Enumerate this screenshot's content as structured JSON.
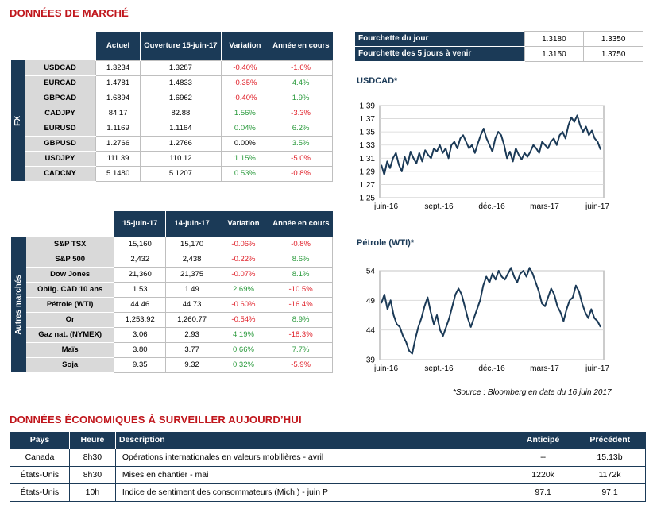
{
  "market": {
    "title": "DONNÉES DE MARCHÉ",
    "fx": {
      "sidebar": "FX",
      "headers": [
        "Actuel",
        "Ouverture 15-juin-17",
        "Variation",
        "Année en cours"
      ],
      "rows": [
        {
          "label": "USDCAD",
          "a": "1.3234",
          "b": "1.3287",
          "v": "-0.40%",
          "vc": "neg",
          "y": "-1.6%",
          "yc": "neg"
        },
        {
          "label": "EURCAD",
          "a": "1.4781",
          "b": "1.4833",
          "v": "-0.35%",
          "vc": "neg",
          "y": "4.4%",
          "yc": "pos"
        },
        {
          "label": "GBPCAD",
          "a": "1.6894",
          "b": "1.6962",
          "v": "-0.40%",
          "vc": "neg",
          "y": "1.9%",
          "yc": "pos"
        },
        {
          "label": "CADJPY",
          "a": "84.17",
          "b": "82.88",
          "v": "1.56%",
          "vc": "pos",
          "y": "-3.3%",
          "yc": "neg"
        },
        {
          "label": "EURUSD",
          "a": "1.1169",
          "b": "1.1164",
          "v": "0.04%",
          "vc": "pos",
          "y": "6.2%",
          "yc": "pos"
        },
        {
          "label": "GBPUSD",
          "a": "1.2766",
          "b": "1.2766",
          "v": "0.00%",
          "vc": "neu",
          "y": "3.5%",
          "yc": "pos"
        },
        {
          "label": "USDJPY",
          "a": "111.39",
          "b": "110.12",
          "v": "1.15%",
          "vc": "pos",
          "y": "-5.0%",
          "yc": "neg"
        },
        {
          "label": "CADCNY",
          "a": "5.1480",
          "b": "5.1207",
          "v": "0.53%",
          "vc": "pos",
          "y": "-0.8%",
          "yc": "neg"
        }
      ]
    },
    "other": {
      "sidebar": "Autres marchés",
      "headers": [
        "15-juin-17",
        "14-juin-17",
        "Variation",
        "Année en cours"
      ],
      "rows": [
        {
          "label": "S&P TSX",
          "a": "15,160",
          "b": "15,170",
          "v": "-0.06%",
          "vc": "neg",
          "y": "-0.8%",
          "yc": "neg"
        },
        {
          "label": "S&P 500",
          "a": "2,432",
          "b": "2,438",
          "v": "-0.22%",
          "vc": "neg",
          "y": "8.6%",
          "yc": "pos"
        },
        {
          "label": "Dow Jones",
          "a": "21,360",
          "b": "21,375",
          "v": "-0.07%",
          "vc": "neg",
          "y": "8.1%",
          "yc": "pos"
        },
        {
          "label": "Oblig. CAD 10 ans",
          "a": "1.53",
          "b": "1.49",
          "v": "2.69%",
          "vc": "pos",
          "y": "-10.5%",
          "yc": "neg"
        },
        {
          "label": "Pétrole (WTI)",
          "a": "44.46",
          "b": "44.73",
          "v": "-0.60%",
          "vc": "neg",
          "y": "-16.4%",
          "yc": "neg"
        },
        {
          "label": "Or",
          "a": "1,253.92",
          "b": "1,260.77",
          "v": "-0.54%",
          "vc": "neg",
          "y": "8.9%",
          "yc": "pos"
        },
        {
          "label": "Gaz nat. (NYMEX)",
          "a": "3.06",
          "b": "2.93",
          "v": "4.19%",
          "vc": "pos",
          "y": "-18.3%",
          "yc": "neg"
        },
        {
          "label": "Maïs",
          "a": "3.80",
          "b": "3.77",
          "v": "0.66%",
          "vc": "pos",
          "y": "7.7%",
          "yc": "pos"
        },
        {
          "label": "Soja",
          "a": "9.35",
          "b": "9.32",
          "v": "0.32%",
          "vc": "pos",
          "y": "-5.9%",
          "yc": "neg"
        }
      ]
    },
    "ranges": [
      {
        "label": "Fourchette du jour",
        "low": "1.3180",
        "high": "1.3350"
      },
      {
        "label": "Fourchette des 5 jours à venir",
        "low": "1.3150",
        "high": "1.3750"
      }
    ],
    "source": "*Source : Bloomberg en date du  16 juin 2017"
  },
  "chart_data": [
    {
      "type": "line",
      "title": "USDCAD*",
      "ylim": [
        1.25,
        1.39
      ],
      "yticks": [
        "1.39",
        "1.37",
        "1.35",
        "1.33",
        "1.31",
        "1.29",
        "1.27",
        "1.25"
      ],
      "xticks": [
        "juin-16",
        "sept.-16",
        "déc.-16",
        "mars-17",
        "juin-17"
      ],
      "series": [
        {
          "values": [
            1.3,
            1.285,
            1.305,
            1.295,
            1.31,
            1.318,
            1.3,
            1.29,
            1.312,
            1.3,
            1.32,
            1.31,
            1.302,
            1.318,
            1.305,
            1.322,
            1.315,
            1.31,
            1.325,
            1.32,
            1.33,
            1.318,
            1.325,
            1.31,
            1.33,
            1.335,
            1.325,
            1.34,
            1.345,
            1.335,
            1.325,
            1.33,
            1.318,
            1.332,
            1.345,
            1.355,
            1.34,
            1.33,
            1.32,
            1.34,
            1.35,
            1.345,
            1.33,
            1.31,
            1.32,
            1.305,
            1.325,
            1.315,
            1.308,
            1.318,
            1.312,
            1.32,
            1.33,
            1.325,
            1.318,
            1.335,
            1.33,
            1.325,
            1.335,
            1.34,
            1.33,
            1.345,
            1.35,
            1.34,
            1.36,
            1.372,
            1.365,
            1.375,
            1.36,
            1.35,
            1.358,
            1.345,
            1.352,
            1.34,
            1.335,
            1.323
          ]
        }
      ]
    },
    {
      "type": "line",
      "title": "Pétrole (WTI)*",
      "ylim": [
        39,
        54
      ],
      "yticks": [
        "54",
        "49",
        "44",
        "39"
      ],
      "xticks": [
        "juin-16",
        "sept.-16",
        "déc.-16",
        "mars-17",
        "juin-17"
      ],
      "series": [
        {
          "values": [
            48.5,
            50.0,
            47.5,
            49.0,
            46.5,
            45.0,
            44.5,
            43.0,
            42.0,
            40.5,
            40.0,
            42.5,
            44.5,
            46.0,
            48.0,
            49.5,
            47.0,
            45.0,
            46.5,
            44.0,
            43.0,
            44.5,
            46.0,
            48.0,
            50.0,
            51.0,
            50.0,
            48.0,
            46.0,
            44.5,
            46.0,
            47.5,
            49.0,
            51.5,
            53.0,
            52.0,
            53.5,
            52.5,
            54.0,
            53.0,
            52.5,
            53.5,
            54.5,
            53.0,
            52.0,
            53.5,
            54.0,
            53.0,
            54.5,
            53.5,
            52.0,
            50.5,
            48.5,
            48.0,
            49.5,
            51.0,
            50.0,
            48.0,
            47.0,
            45.5,
            47.5,
            49.0,
            49.5,
            51.5,
            50.5,
            48.5,
            47.0,
            46.0,
            47.5,
            46.0,
            45.5,
            44.5
          ]
        }
      ]
    }
  ],
  "econ": {
    "title": "DONNÉES ÉCONOMIQUES À SURVEILLER AUJOURD’HUI",
    "headers": [
      "Pays",
      "Heure",
      "Description",
      "Anticipé",
      "Précédent"
    ],
    "rows": [
      {
        "pays": "Canada",
        "heure": "8h30",
        "desc": "Opérations internationales en valeurs mobilières - avril",
        "anticipe": "--",
        "precedent": "15.13b"
      },
      {
        "pays": "États-Unis",
        "heure": "8h30",
        "desc": "Mises en chantier - mai",
        "anticipe": "1220k",
        "precedent": "1172k"
      },
      {
        "pays": "États-Unis",
        "heure": "10h",
        "desc": "Indice de sentiment des consommateurs (Mich.) - juin P",
        "anticipe": "97.1",
        "precedent": "97.1"
      }
    ]
  },
  "colors": {
    "navy": "#1b3a57",
    "red": "#c0161c",
    "neg": "#e0212a",
    "pos": "#2a9a3c"
  }
}
